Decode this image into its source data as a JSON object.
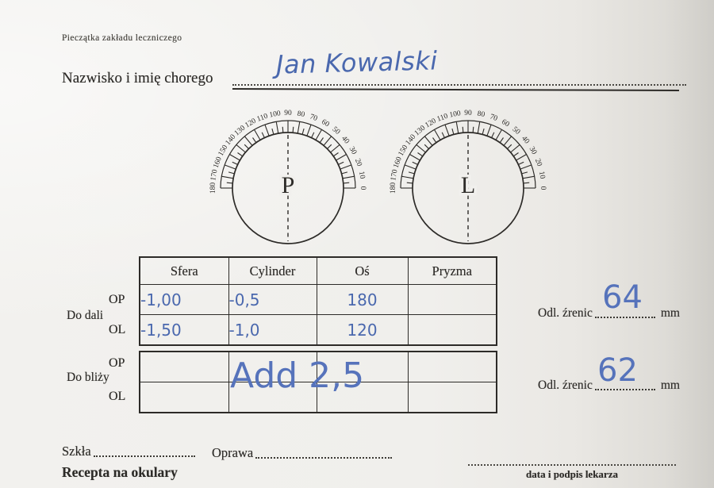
{
  "form": {
    "stamp_label": "Pieczątka zakładu leczniczego",
    "patient_label": "Nazwisko i imię chorego",
    "patient_name": "Jan Kowalski"
  },
  "dials": {
    "degree_labels": [
      "0",
      "10",
      "20",
      "30",
      "40",
      "50",
      "60",
      "70",
      "80",
      "90",
      "100",
      "110",
      "120",
      "130",
      "140",
      "150",
      "160",
      "170",
      "180"
    ],
    "right_letter": "P",
    "left_letter": "L"
  },
  "rx_table": {
    "headers": [
      "Sfera",
      "Cylinder",
      "Oś",
      "Pryzma"
    ],
    "far": {
      "label": "Do dali",
      "op": {
        "eye": "OP",
        "sfera": "-1,00",
        "cylinder": "-0,5",
        "os": "180",
        "pryzma": ""
      },
      "ol": {
        "eye": "OL",
        "sfera": "-1,50",
        "cylinder": "-1,0",
        "os": "120",
        "pryzma": ""
      }
    },
    "near": {
      "label": "Do bliży",
      "op": {
        "eye": "OP",
        "sfera": "",
        "cylinder": "",
        "os": "",
        "pryzma": ""
      },
      "ol": {
        "eye": "OL",
        "sfera": "",
        "cylinder": "",
        "os": "",
        "pryzma": ""
      },
      "annotation": "Add 2,5"
    }
  },
  "pd": {
    "far": {
      "label": "Odl. źrenic",
      "value": "64",
      "unit": "mm"
    },
    "near": {
      "label": "Odl. źrenic",
      "value": "62",
      "unit": "mm"
    }
  },
  "footer": {
    "szkla_label": "Szkła",
    "oprawa_label": "Oprawa",
    "recepta_label": "Recepta na okulary",
    "signature_label": "data i podpis lekarza"
  },
  "colors": {
    "handwriting_blue": "#4a68ae",
    "annotation_blue": "#5673bb",
    "ink_black": "#2d2b28",
    "paper": "#f1f0ed"
  }
}
